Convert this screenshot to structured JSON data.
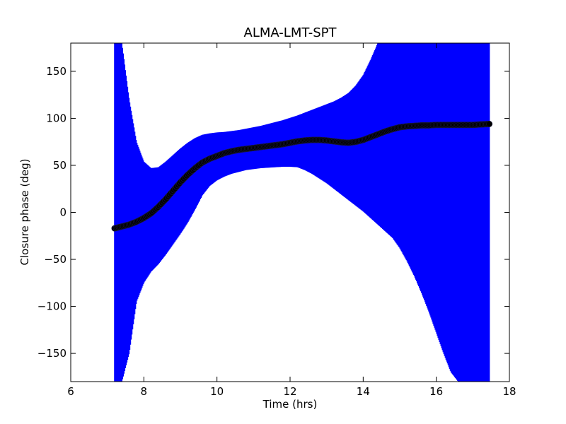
{
  "chart_data": {
    "type": "scatter",
    "title": "ALMA-LMT-SPT",
    "xlabel": "Time (hrs)",
    "ylabel": "Closure phase (deg)",
    "xlim": [
      6,
      18
    ],
    "ylim": [
      -180,
      180
    ],
    "xticks": [
      6,
      8,
      10,
      12,
      14,
      16,
      18
    ],
    "yticks": [
      -150,
      -100,
      -50,
      0,
      50,
      100,
      150
    ],
    "grid": false,
    "marker_color": "#000000",
    "error_color": "#0000ff",
    "series": [
      {
        "x": [
          7.2,
          7.4,
          7.6,
          7.8,
          8.0,
          8.2,
          8.4,
          8.6,
          8.8,
          9.0,
          9.2,
          9.4,
          9.6,
          9.8,
          10.0,
          10.2,
          10.4,
          10.6,
          10.8,
          11.0,
          11.2,
          11.4,
          11.6,
          11.8,
          12.0,
          12.2,
          12.4,
          12.6,
          12.8,
          13.0,
          13.2,
          13.4,
          13.6,
          13.8,
          14.0,
          14.2,
          14.4,
          14.6,
          14.8,
          15.0,
          15.2,
          15.4,
          15.6,
          15.8,
          16.0,
          16.2,
          16.4,
          16.6,
          16.8,
          17.0,
          17.2,
          17.45
        ],
        "y": [
          -17,
          -15,
          -13,
          -10,
          -6,
          -1,
          6,
          14,
          23,
          32,
          40,
          47,
          53,
          57,
          60,
          63,
          65,
          66.5,
          67.5,
          68.5,
          69.5,
          70.5,
          71.5,
          72.5,
          74,
          75.5,
          76.5,
          77,
          77,
          76.5,
          75.5,
          74.5,
          74,
          75,
          77,
          80,
          83,
          86,
          88.5,
          90.5,
          91.5,
          92,
          92.5,
          92.5,
          93,
          93,
          93,
          93,
          93,
          93,
          93.5,
          94
        ],
        "y_upper": [
          180,
          180,
          120,
          75,
          54,
          47,
          48,
          54,
          61,
          68,
          74,
          79,
          82.5,
          84,
          85,
          85.5,
          86.5,
          87.5,
          89,
          90.5,
          92,
          94,
          96,
          98,
          100.5,
          103,
          106,
          109,
          112,
          115,
          118,
          122,
          127,
          135,
          146,
          162,
          180,
          180,
          180,
          180,
          180,
          180,
          180,
          180,
          180,
          180,
          180,
          180,
          180,
          180,
          180,
          180
        ],
        "y_lower": [
          -180,
          -180,
          -150,
          -95,
          -75,
          -63,
          -55,
          -45,
          -34,
          -23,
          -11,
          3,
          18,
          28,
          34,
          38,
          41,
          43,
          45,
          46,
          47,
          47.5,
          48,
          48.5,
          48.5,
          48,
          45,
          41,
          36,
          31,
          25,
          19,
          13,
          7,
          1,
          -6,
          -13,
          -20,
          -27,
          -38,
          -52,
          -68,
          -86,
          -106,
          -128,
          -150,
          -170,
          -180,
          -180,
          -180,
          -180,
          -180
        ]
      }
    ]
  }
}
